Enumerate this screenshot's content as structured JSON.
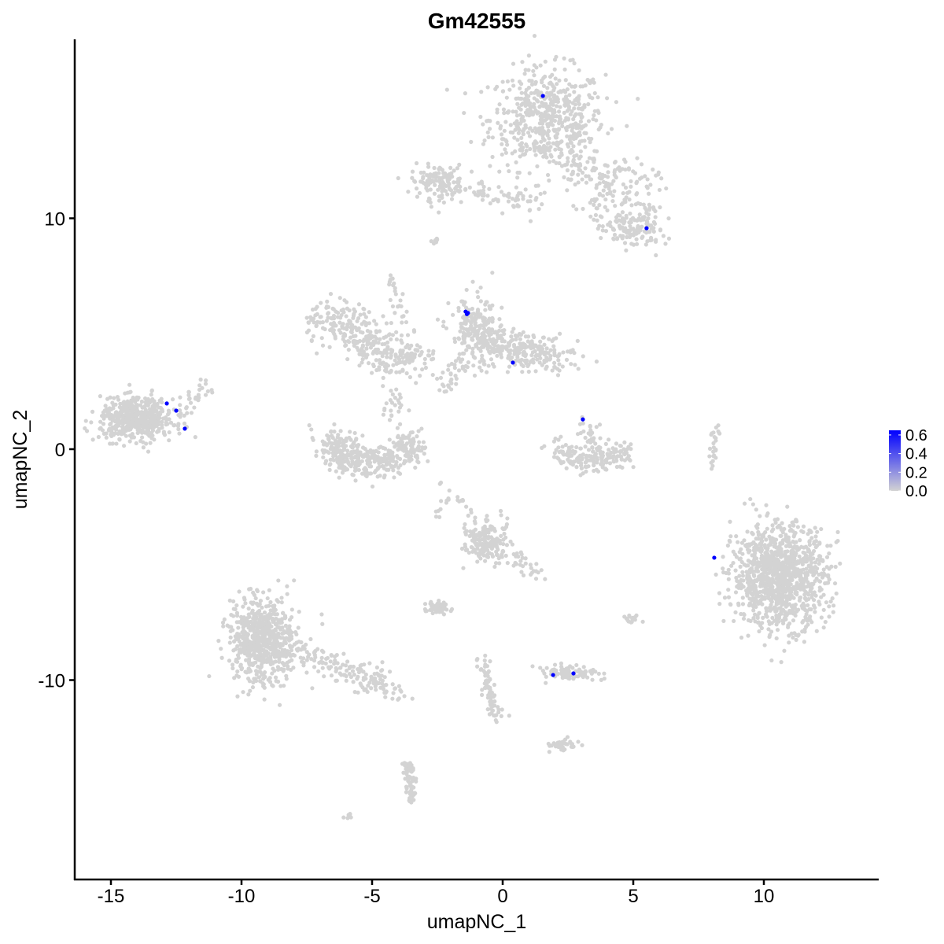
{
  "chart_data": {
    "type": "scatter",
    "title": "Gm42555",
    "xlabel": "umapNC_1",
    "ylabel": "umapNC_2",
    "xlim": [
      -16.4,
      14.4
    ],
    "ylim": [
      -18.3,
      17.6
    ],
    "xticks": [
      -15,
      -10,
      -5,
      0,
      5,
      10
    ],
    "yticks": [
      -10,
      0,
      10
    ],
    "xtick_labels": [
      "-15",
      "-10",
      "-5",
      "0",
      "5",
      "10"
    ],
    "ytick_labels": [
      "-10",
      "0",
      "10"
    ],
    "grid": false,
    "colors": {
      "low": "#d3d3d3",
      "high": "#0000ff"
    },
    "legend": {
      "placement": "right",
      "ticks": [
        "0.0",
        "0.2",
        "0.4",
        "0.6"
      ],
      "tick_values": [
        0,
        0.2,
        0.4,
        0.6
      ],
      "max": 0.65
    },
    "background_clusters_value": 0,
    "background_clusters": [
      {
        "kind": "blob",
        "x": 1.7,
        "y": 14.3,
        "sx": 1.1,
        "sy": 1.1,
        "n": 550
      },
      {
        "kind": "segment",
        "from": [
          2.3,
          13.0
        ],
        "to": [
          5.2,
          10.0
        ],
        "w": 0.6,
        "n": 160
      },
      {
        "kind": "segment",
        "from": [
          3.5,
          12.0
        ],
        "to": [
          5.6,
          11.5
        ],
        "w": 0.4,
        "n": 40
      },
      {
        "kind": "blob",
        "x": 5.0,
        "y": 9.5,
        "sx": 0.6,
        "sy": 0.4,
        "n": 110
      },
      {
        "kind": "blob",
        "x": -2.5,
        "y": 11.6,
        "sx": 0.5,
        "sy": 0.35,
        "n": 120
      },
      {
        "kind": "segment",
        "from": [
          -2.3,
          11.2
        ],
        "to": [
          1.5,
          10.8
        ],
        "w": 0.25,
        "n": 70
      },
      {
        "kind": "segment",
        "from": [
          -6.9,
          5.8
        ],
        "to": [
          -4.0,
          3.8
        ],
        "w": 0.5,
        "n": 280
      },
      {
        "kind": "segment",
        "from": [
          -4.0,
          3.8
        ],
        "to": [
          -3.0,
          3.9
        ],
        "w": 0.3,
        "n": 40
      },
      {
        "kind": "segment",
        "from": [
          -4.3,
          7.5
        ],
        "to": [
          -3.3,
          4.0
        ],
        "w": 0.15,
        "n": 35
      },
      {
        "kind": "arc",
        "x": -5.0,
        "y": 0.5,
        "r": 1.5,
        "ry": 1.1,
        "a0": 180,
        "a1": 360,
        "w": 0.35,
        "n": 420
      },
      {
        "kind": "segment",
        "from": [
          -4.3,
          2.5
        ],
        "to": [
          -4.3,
          1.0
        ],
        "w": 0.2,
        "n": 25
      },
      {
        "kind": "blob",
        "x": -1.0,
        "y": 5.0,
        "sx": 0.5,
        "sy": 0.8,
        "n": 220
      },
      {
        "kind": "segment",
        "from": [
          -0.5,
          4.5
        ],
        "to": [
          2.4,
          4.0
        ],
        "w": 0.4,
        "n": 220
      },
      {
        "kind": "segment",
        "from": [
          -1.7,
          4.0
        ],
        "to": [
          -2.2,
          2.4
        ],
        "w": 0.2,
        "n": 30
      },
      {
        "kind": "blob",
        "x": -14.0,
        "y": 1.3,
        "sx": 0.7,
        "sy": 0.45,
        "n": 520
      },
      {
        "kind": "segment",
        "from": [
          -12.3,
          1.5
        ],
        "to": [
          -11.4,
          2.8
        ],
        "w": 0.2,
        "n": 30
      },
      {
        "kind": "arc",
        "x": 3.4,
        "y": 0.2,
        "r": 1.2,
        "ry": 0.8,
        "a0": 190,
        "a1": 350,
        "w": 0.25,
        "n": 170
      },
      {
        "kind": "segment",
        "from": [
          3.1,
          1.2
        ],
        "to": [
          3.7,
          -0.4
        ],
        "w": 0.2,
        "n": 40
      },
      {
        "kind": "blob",
        "x": 10.6,
        "y": -5.5,
        "sx": 0.9,
        "sy": 1.1,
        "n": 1100
      },
      {
        "kind": "segment",
        "from": [
          8.0,
          -0.8
        ],
        "to": [
          8.2,
          1.0
        ],
        "w": 0.08,
        "n": 25
      },
      {
        "kind": "blob",
        "x": -9.2,
        "y": -8.3,
        "sx": 0.6,
        "sy": 0.9,
        "n": 650
      },
      {
        "kind": "segment",
        "from": [
          -8.5,
          -8.5
        ],
        "to": [
          -3.9,
          -10.5
        ],
        "w": 0.3,
        "n": 180
      },
      {
        "kind": "blob",
        "x": -0.6,
        "y": -3.9,
        "sx": 0.4,
        "sy": 0.45,
        "n": 180
      },
      {
        "kind": "segment",
        "from": [
          0.2,
          -4.5
        ],
        "to": [
          1.3,
          -5.5
        ],
        "w": 0.15,
        "n": 30
      },
      {
        "kind": "blob",
        "x": -2.5,
        "y": -6.9,
        "sx": 0.25,
        "sy": 0.15,
        "n": 60
      },
      {
        "kind": "blob",
        "x": 2.6,
        "y": -9.7,
        "sx": 0.5,
        "sy": 0.15,
        "n": 90
      },
      {
        "kind": "segment",
        "from": [
          -0.8,
          -9.2
        ],
        "to": [
          -0.2,
          -11.7
        ],
        "w": 0.12,
        "n": 70
      },
      {
        "kind": "blob",
        "x": 2.3,
        "y": -12.8,
        "sx": 0.3,
        "sy": 0.12,
        "n": 40
      },
      {
        "kind": "segment",
        "from": [
          -3.6,
          -13.6
        ],
        "to": [
          -3.5,
          -15.3
        ],
        "w": 0.12,
        "n": 70
      },
      {
        "kind": "blob",
        "x": 5.0,
        "y": -7.4,
        "sx": 0.15,
        "sy": 0.1,
        "n": 15
      },
      {
        "kind": "segment",
        "from": [
          -2.6,
          -2.9
        ],
        "to": [
          -2.1,
          -2.2
        ],
        "w": 0.1,
        "n": 10
      },
      {
        "kind": "segment",
        "from": [
          -6.1,
          -16.0
        ],
        "to": [
          -5.8,
          -15.8
        ],
        "w": 0.05,
        "n": 6
      },
      {
        "kind": "segment",
        "from": [
          -2.7,
          8.9
        ],
        "to": [
          -2.5,
          9.1
        ],
        "w": 0.05,
        "n": 8
      },
      {
        "kind": "segment",
        "from": [
          -2.4,
          -1.5
        ],
        "to": [
          -1.2,
          -2.7
        ],
        "w": 0.05,
        "n": 12
      }
    ],
    "expressing_points": [
      {
        "x": 1.54,
        "y": 15.3,
        "value": 0.65
      },
      {
        "x": 5.51,
        "y": 9.57,
        "value": 0.65
      },
      {
        "x": -1.42,
        "y": 5.96,
        "value": 0.65
      },
      {
        "x": -1.33,
        "y": 5.9,
        "value": 0.65
      },
      {
        "x": -1.37,
        "y": 5.85,
        "value": 0.65
      },
      {
        "x": 0.39,
        "y": 3.75,
        "value": 0.65
      },
      {
        "x": 3.07,
        "y": 1.29,
        "value": 0.65
      },
      {
        "x": -12.86,
        "y": 1.98,
        "value": 0.65
      },
      {
        "x": -12.5,
        "y": 1.67,
        "value": 0.65
      },
      {
        "x": -12.17,
        "y": 0.89,
        "value": 0.65
      },
      {
        "x": 8.1,
        "y": -4.7,
        "value": 0.65
      },
      {
        "x": 1.93,
        "y": -9.78,
        "value": 0.65
      },
      {
        "x": 2.71,
        "y": -9.71,
        "value": 0.65
      }
    ]
  }
}
